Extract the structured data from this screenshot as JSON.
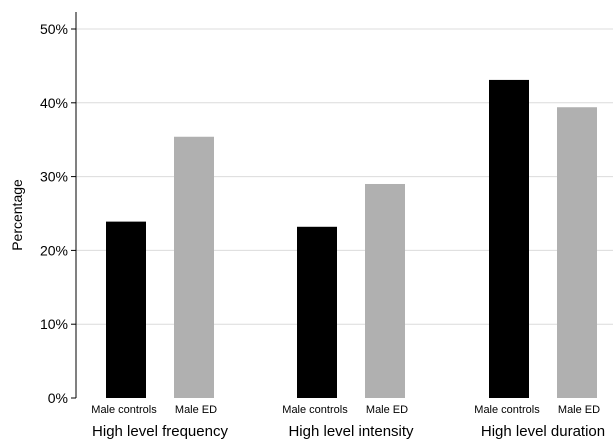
{
  "chart_data": {
    "type": "bar",
    "title": "",
    "xlabel": "",
    "ylabel": "Percentage",
    "ylim": [
      0,
      50
    ],
    "yticks": [
      "0%",
      "10%",
      "20%",
      "30%",
      "40%",
      "50%"
    ],
    "grid": true,
    "categories": [
      "High level frequency",
      "High level intensity",
      "High level duration"
    ],
    "series": [
      {
        "name": "Male controls",
        "color": "#000000",
        "values": [
          23.9,
          23.2,
          43.1
        ]
      },
      {
        "name": "Male ED",
        "color": "#b0b0b0",
        "values": [
          35.4,
          29.0,
          39.4
        ]
      }
    ]
  }
}
